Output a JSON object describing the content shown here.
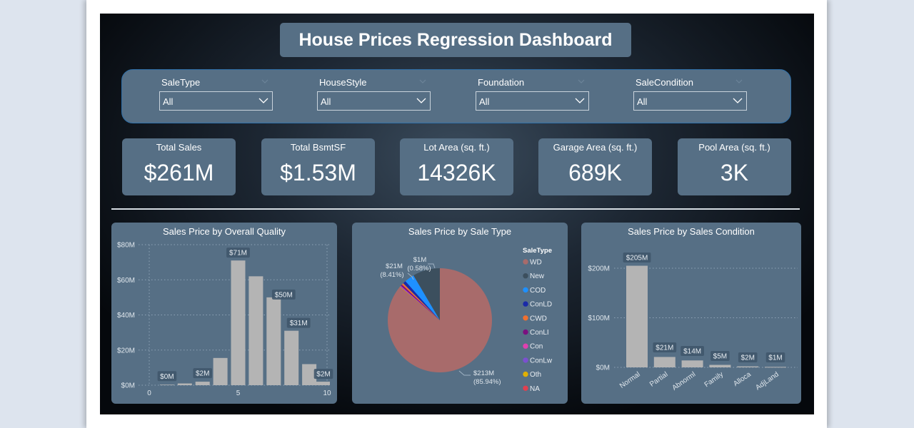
{
  "header": {
    "title": "House Prices Regression Dashboard"
  },
  "slicers": [
    {
      "label": "SaleType",
      "value": "All"
    },
    {
      "label": "HouseStyle",
      "value": "All"
    },
    {
      "label": "Foundation",
      "value": "All"
    },
    {
      "label": "SaleCondition",
      "value": "All"
    }
  ],
  "kpis": [
    {
      "label": "Total Sales",
      "value": "$261M"
    },
    {
      "label": "Total BsmtSF",
      "value": "$1.53M"
    },
    {
      "label": "Lot Area (sq. ft.)",
      "value": "14326K"
    },
    {
      "label": "Garage Area (sq. ft.)",
      "value": "689K"
    },
    {
      "label": "Pool Area (sq. ft.)",
      "value": "3K"
    }
  ],
  "colors": {
    "card_bg": "#566f85",
    "bar": "#b4b4b4",
    "label_bg": "#40576b",
    "gridline": "#8ea3b6"
  },
  "chart_data": [
    {
      "type": "bar",
      "title": "Sales Price by Overall Quality",
      "xlabel": "",
      "ylabel": "",
      "x": [
        1,
        2,
        3,
        4,
        5,
        6,
        7,
        8,
        9,
        10
      ],
      "values": [
        0.3,
        1,
        2,
        15.5,
        71,
        62,
        50,
        31,
        12,
        2
      ],
      "data_labels": [
        "$0M",
        "",
        "$2M",
        "",
        "$71M",
        "",
        "$50M",
        "$31M",
        "",
        "$2M"
      ],
      "xticks": [
        "0",
        "5",
        "10"
      ],
      "xlim": [
        0,
        10
      ],
      "yticks": [
        "$0M",
        "$20M",
        "$40M",
        "$60M",
        "$80M"
      ],
      "ylim": [
        0,
        80
      ],
      "grid": true
    },
    {
      "type": "pie",
      "title": "Sales Price by Sale Type",
      "legend_title": "SaleType",
      "legend_position": "right",
      "slices": [
        {
          "name": "WD",
          "value": 213,
          "percent": 85.94,
          "color": "#a86b6b",
          "label": "$213M",
          "pct_label": "(85.94%)"
        },
        {
          "name": "New",
          "value": 21,
          "percent": 8.41,
          "color": "#3c4f5e",
          "label": "$21M",
          "pct_label": "(8.41%)"
        },
        {
          "name": "COD",
          "value": 7.5,
          "percent": 3.01,
          "color": "#1e90ff",
          "label": "",
          "pct_label": ""
        },
        {
          "name": "ConLD",
          "value": 2.3,
          "percent": 0.92,
          "color": "#1a2aa8",
          "label": "",
          "pct_label": ""
        },
        {
          "name": "CWD",
          "value": 1.4,
          "percent": 0.58,
          "color": "#f07030",
          "label": "$1M",
          "pct_label": "(0.58%)"
        },
        {
          "name": "ConLI",
          "value": 1.2,
          "percent": 0.48,
          "color": "#7a1080",
          "label": "",
          "pct_label": ""
        },
        {
          "name": "Con",
          "value": 0.5,
          "percent": 0.2,
          "color": "#e040b0",
          "label": "",
          "pct_label": ""
        },
        {
          "name": "ConLw",
          "value": 0.5,
          "percent": 0.2,
          "color": "#7b50d0",
          "label": "",
          "pct_label": ""
        },
        {
          "name": "Oth",
          "value": 0.4,
          "percent": 0.16,
          "color": "#e0b000",
          "label": "",
          "pct_label": ""
        },
        {
          "name": "NA",
          "value": 0.25,
          "percent": 0.1,
          "color": "#e04050",
          "label": "",
          "pct_label": ""
        }
      ]
    },
    {
      "type": "bar",
      "title": "Sales Price by Sales Condition",
      "xlabel": "",
      "ylabel": "",
      "categories": [
        "Normal",
        "Partial",
        "Abnorml",
        "Family",
        "Alloca",
        "AdjLand"
      ],
      "values": [
        205,
        21,
        14,
        5,
        2,
        1
      ],
      "data_labels": [
        "$205M",
        "$21M",
        "$14M",
        "$5M",
        "$2M",
        "$1M"
      ],
      "yticks": [
        "$0M",
        "$100M",
        "$200M"
      ],
      "ylim": [
        0,
        220
      ],
      "grid": true
    }
  ]
}
